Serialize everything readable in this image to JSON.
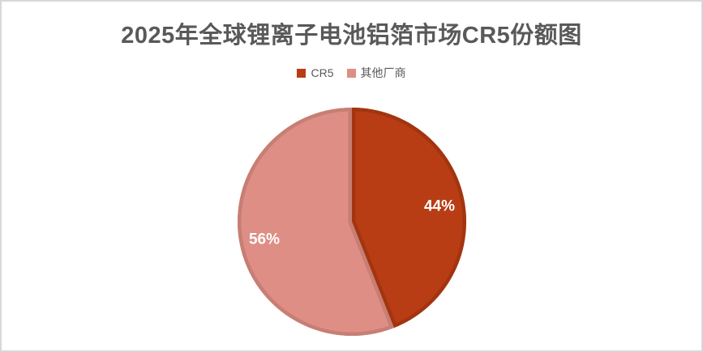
{
  "title": "2025年全球锂离子电池铝箔市场CR5份额图",
  "title_color": "#595959",
  "frame_border_color": "#d8d8d8",
  "background_color": "#ffffff",
  "legend_text_color": "#595959",
  "chart_data": {
    "type": "pie",
    "title": "2025年全球锂离子电池铝箔市场CR5份额图",
    "slices": [
      {
        "name": "CR5",
        "value": 44,
        "label": "44%",
        "fill": "#b83d15",
        "border": "#a23510"
      },
      {
        "name": "其他厂商",
        "value": 56,
        "label": "56%",
        "fill": "#de8e85",
        "border": "#c77e74"
      }
    ],
    "start_angle_deg": -90,
    "direction": "clockwise",
    "label_color": "#ffffff",
    "label_radius_fraction": 0.78,
    "legend_position": "top",
    "legend_entries": [
      "CR5",
      "其他厂商"
    ]
  }
}
